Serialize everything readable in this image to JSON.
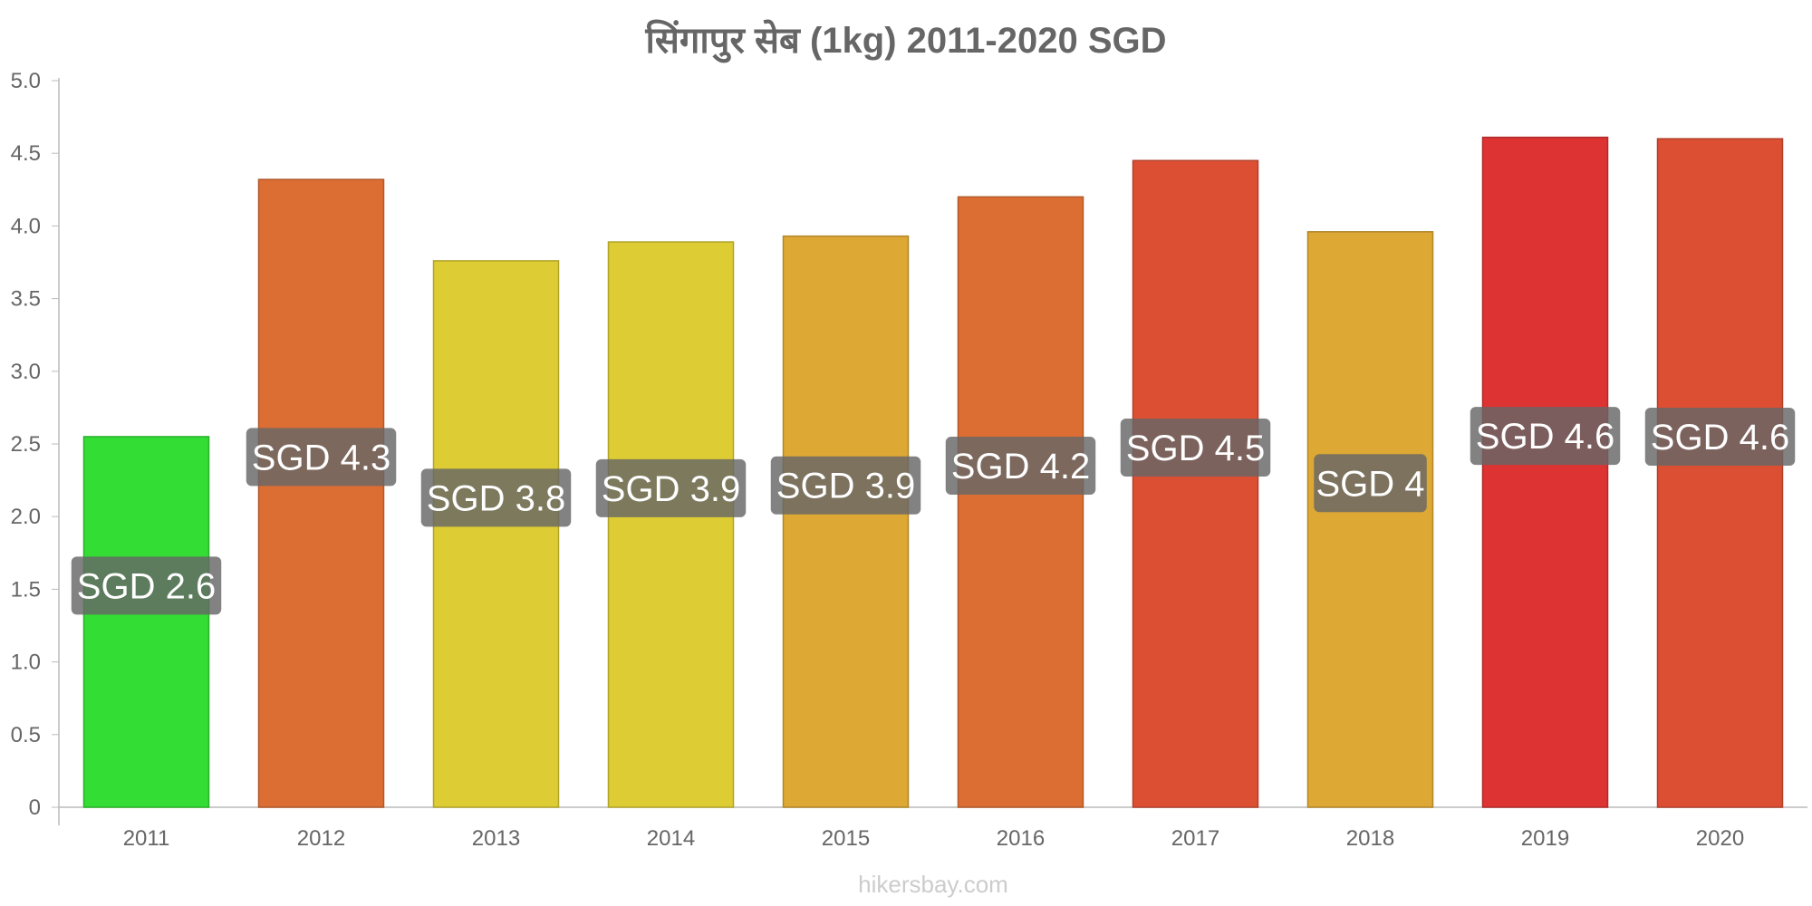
{
  "chart_data": {
    "type": "bar",
    "title": "सिंगापुर    सेब    (1kg) 2011-2020 SGD",
    "categories": [
      "2011",
      "2012",
      "2013",
      "2014",
      "2015",
      "2016",
      "2017",
      "2018",
      "2019",
      "2020"
    ],
    "values": [
      2.55,
      4.32,
      3.76,
      3.89,
      3.93,
      4.2,
      4.45,
      3.96,
      4.61,
      4.6
    ],
    "data_labels": [
      "SGD 2.6",
      "SGD 4.3",
      "SGD 3.8",
      "SGD 3.9",
      "SGD 3.9",
      "SGD 4.2",
      "SGD 4.5",
      "SGD 4",
      "SGD 4.6",
      "SGD 4.6"
    ],
    "bar_colors": [
      "#33dd33",
      "#dd6e33",
      "#ddcc33",
      "#ddcc33",
      "#dda833",
      "#dd6e33",
      "#dd4f33",
      "#dda833",
      "#dd3333",
      "#dd4f33"
    ],
    "label_box_color": "#666666",
    "ylim": [
      0,
      5
    ],
    "yticks": [
      0,
      0.5,
      1.0,
      1.5,
      2.0,
      2.5,
      3.0,
      3.5,
      4.0,
      4.5,
      5.0
    ],
    "ytick_labels": [
      "0",
      "0.5",
      "1.0",
      "1.5",
      "2.0",
      "2.5",
      "3.0",
      "3.5",
      "4.0",
      "4.5",
      "5.0"
    ],
    "xlabel": "",
    "ylabel": "",
    "grid": false,
    "watermark": "hikersbay.com"
  }
}
